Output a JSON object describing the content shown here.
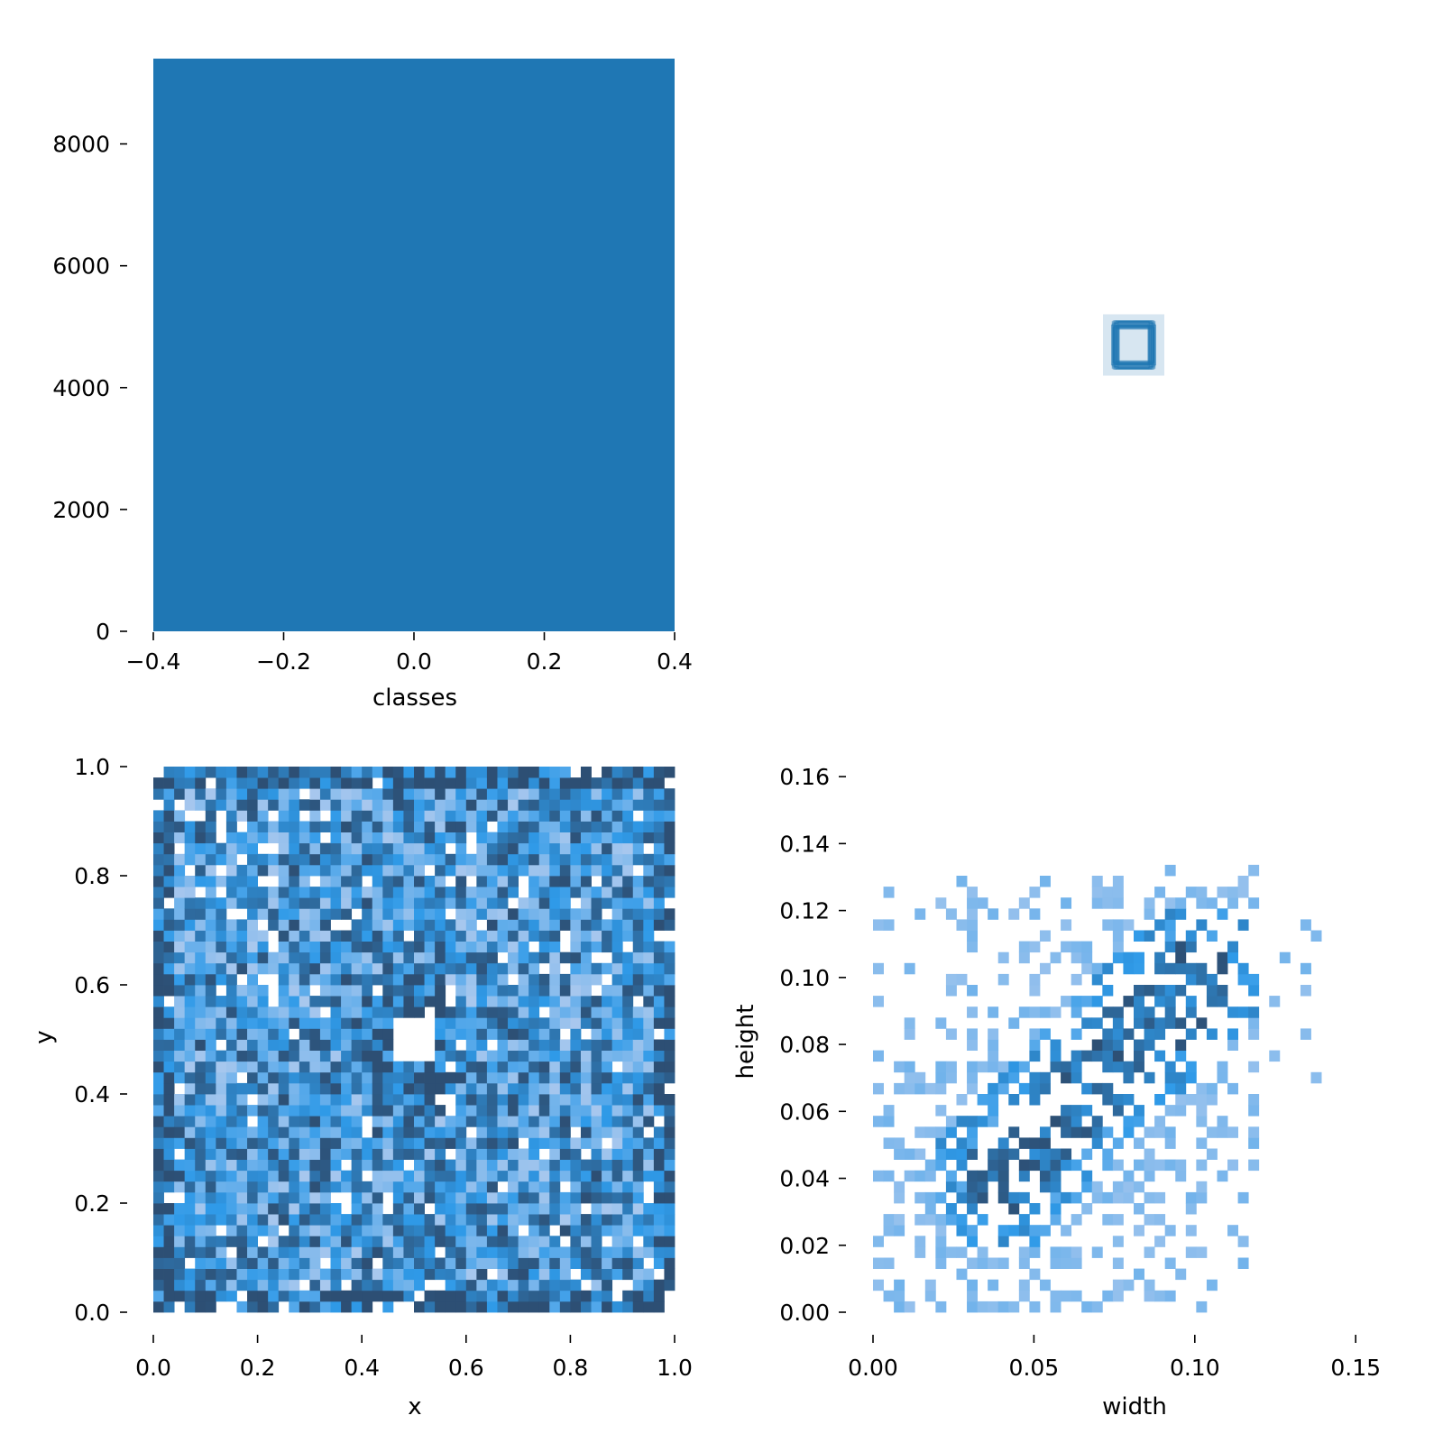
{
  "colors": {
    "bar": "#1f77b4",
    "box": "#1f77b4",
    "heat_low": "#a9c8ee",
    "heat_mid": "#2f9ae8",
    "heat_high": "#2d4f74"
  },
  "chart_data": [
    {
      "id": "classes",
      "type": "bar",
      "xlabel": "classes",
      "ylabel": "",
      "x": [
        0
      ],
      "values": [
        9400
      ],
      "bar_width": 0.8,
      "xlim": [
        -0.4,
        0.4
      ],
      "ylim": [
        0,
        9400
      ],
      "xticks": [
        "−0.4",
        "−0.2",
        "0.0",
        "0.2",
        "0.4"
      ],
      "xtick_values": [
        -0.4,
        -0.2,
        0.0,
        0.2,
        0.4
      ],
      "yticks": [
        "0",
        "2000",
        "4000",
        "6000",
        "8000"
      ],
      "ytick_values": [
        0,
        2000,
        4000,
        6000,
        8000
      ],
      "grid": false
    },
    {
      "id": "boxes",
      "type": "scatter",
      "description_note": "overlaid bounding-box rectangles centred on one point",
      "center": [
        0.5,
        0.5
      ],
      "typical_width": 0.07,
      "typical_height": 0.07,
      "grid": false
    },
    {
      "id": "xy",
      "type": "heatmap",
      "xlabel": "x",
      "ylabel": "y",
      "xlim": [
        0.0,
        1.0
      ],
      "ylim": [
        0.0,
        1.0
      ],
      "bins": 50,
      "xticks": [
        "0.0",
        "0.2",
        "0.4",
        "0.6",
        "0.8",
        "1.0"
      ],
      "yticks": [
        "0.0",
        "0.2",
        "0.4",
        "0.6",
        "0.8",
        "1.0"
      ],
      "tick_values": [
        0.0,
        0.2,
        0.4,
        0.6,
        0.8,
        1.0
      ],
      "empty_region": {
        "x": [
          0.46,
          0.54
        ],
        "y": [
          0.46,
          0.54
        ]
      },
      "grid": false
    },
    {
      "id": "wh",
      "type": "heatmap",
      "xlabel": "width",
      "ylabel": "height",
      "xlim": [
        0.0,
        0.162
      ],
      "ylim": [
        0.0,
        0.163
      ],
      "bins": 50,
      "xticks": [
        "0.00",
        "0.05",
        "0.10",
        "0.15"
      ],
      "xtick_values": [
        0.0,
        0.05,
        0.1,
        0.15
      ],
      "yticks": [
        "0.00",
        "0.02",
        "0.04",
        "0.06",
        "0.08",
        "0.10",
        "0.12",
        "0.14",
        "0.16"
      ],
      "ytick_values": [
        0.0,
        0.02,
        0.04,
        0.06,
        0.08,
        0.1,
        0.12,
        0.14,
        0.16
      ],
      "dense_band": {
        "from": [
          0.04,
          0.04
        ],
        "to": [
          0.1,
          0.1
        ]
      },
      "grid": false
    }
  ]
}
